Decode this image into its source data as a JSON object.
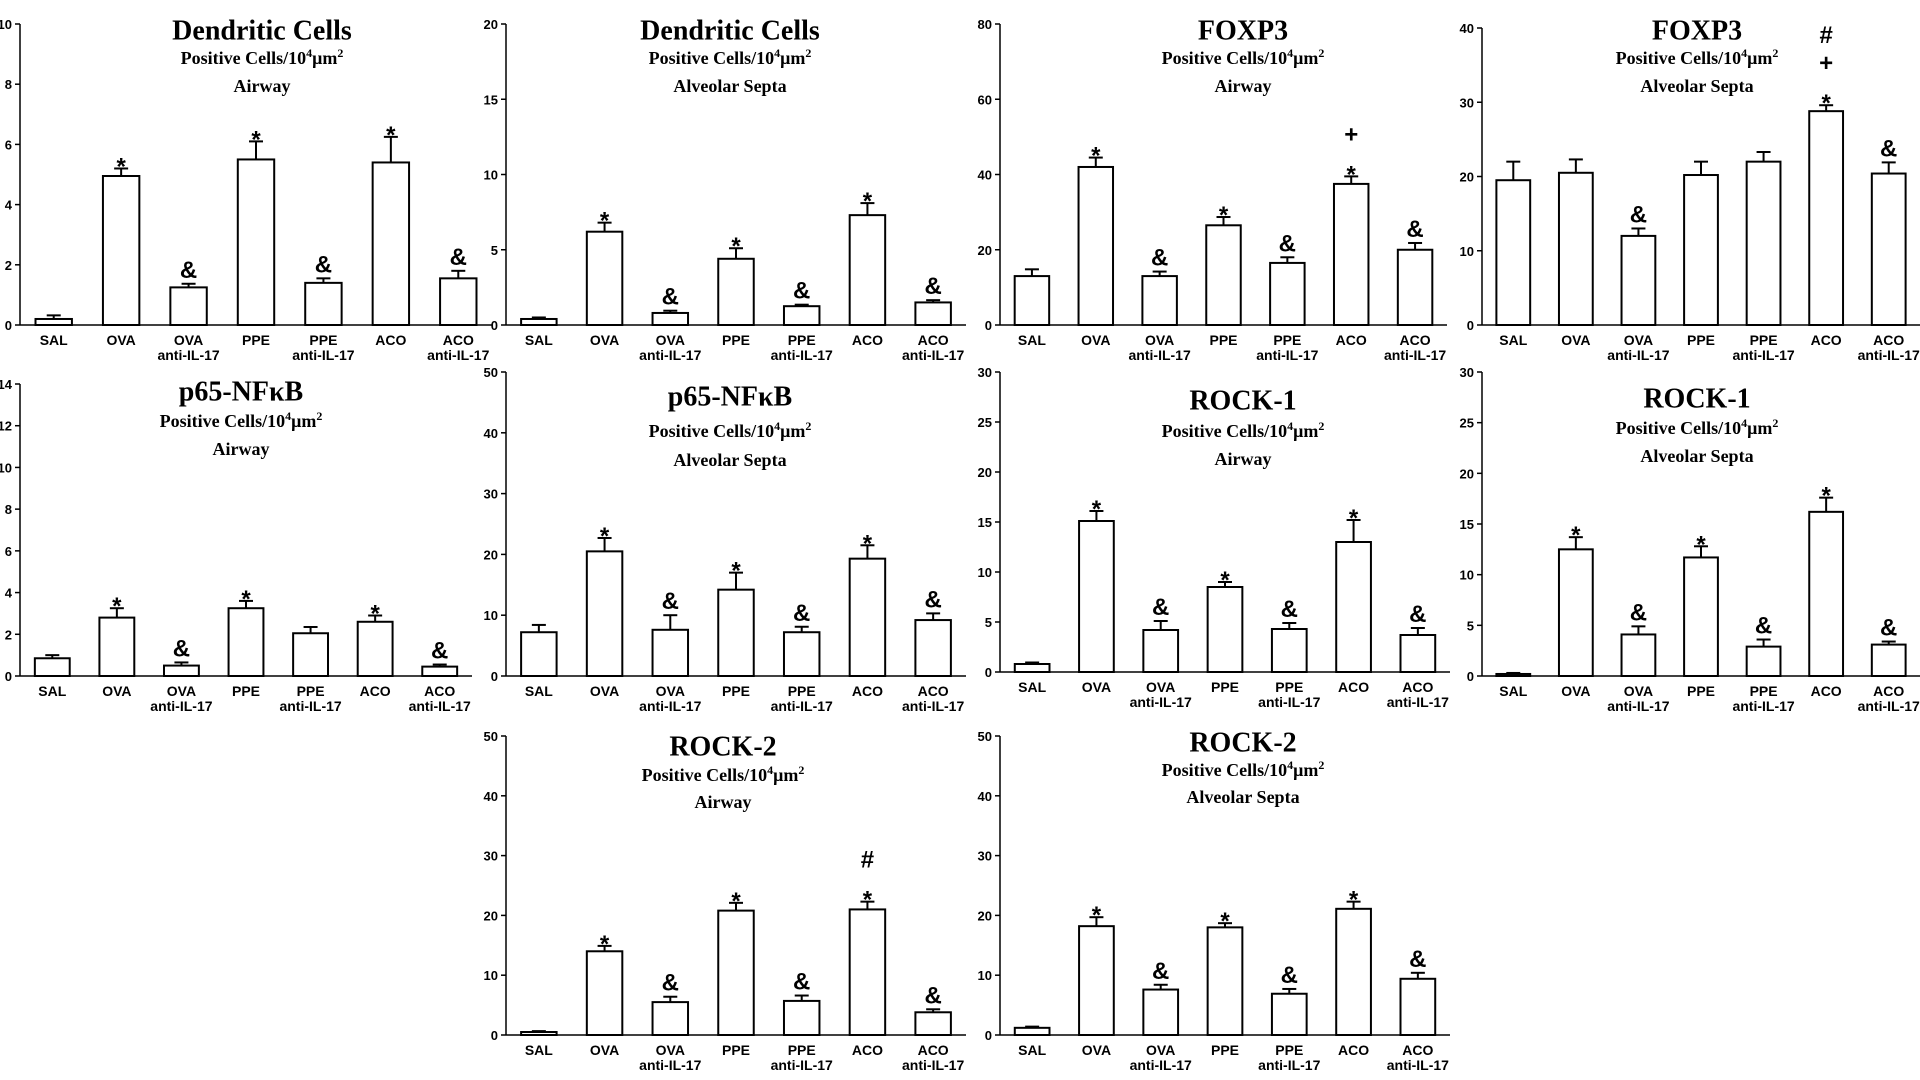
{
  "figure_unit_prefix": "Positive Cells/10",
  "figure_unit_exponent": "4",
  "figure_unit_suffix": "μm",
  "figure_unit_exponent2": "2",
  "chart_data": [
    {
      "type": "bar",
      "title": "Dendritic Cells",
      "location": "Airway",
      "categories": [
        [
          "SAL"
        ],
        [
          "OVA"
        ],
        [
          "OVA",
          "anti-IL-17"
        ],
        [
          "PPE"
        ],
        [
          "PPE",
          "anti-IL-17"
        ],
        [
          "ACO"
        ],
        [
          "ACO",
          "anti-IL-17"
        ]
      ],
      "values": [
        0.2,
        4.95,
        1.25,
        5.5,
        1.4,
        5.4,
        1.55
      ],
      "errors": [
        0.12,
        0.25,
        0.12,
        0.6,
        0.15,
        0.85,
        0.25
      ],
      "annotations": [
        [],
        [
          "*"
        ],
        [
          "&"
        ],
        [
          "*"
        ],
        [
          "&"
        ],
        [
          "*"
        ],
        [
          "&"
        ]
      ],
      "ylim": [
        0,
        10
      ],
      "yticks": [
        0,
        2,
        4,
        6,
        8,
        10
      ]
    },
    {
      "type": "bar",
      "title": "Dendritic Cells",
      "location": "Alveolar Septa",
      "categories": [
        [
          "SAL"
        ],
        [
          "OVA"
        ],
        [
          "OVA",
          "anti-IL-17"
        ],
        [
          "PPE"
        ],
        [
          "PPE",
          "anti-IL-17"
        ],
        [
          "ACO"
        ],
        [
          "ACO",
          "anti-IL-17"
        ]
      ],
      "values": [
        0.4,
        6.2,
        0.8,
        4.4,
        1.25,
        7.3,
        1.5
      ],
      "errors": [
        0.1,
        0.6,
        0.15,
        0.7,
        0.1,
        0.8,
        0.15
      ],
      "annotations": [
        [],
        [
          "*"
        ],
        [
          "&"
        ],
        [
          "*"
        ],
        [
          "&"
        ],
        [
          "*"
        ],
        [
          "&"
        ]
      ],
      "ylim": [
        0,
        20
      ],
      "yticks": [
        0,
        5,
        10,
        15,
        20
      ]
    },
    {
      "type": "bar",
      "title": "FOXP3",
      "location": "Airway",
      "categories": [
        [
          "SAL"
        ],
        [
          "OVA"
        ],
        [
          "OVA",
          "anti-IL-17"
        ],
        [
          "PPE"
        ],
        [
          "PPE",
          "anti-IL-17"
        ],
        [
          "ACO"
        ],
        [
          "ACO",
          "anti-IL-17"
        ]
      ],
      "values": [
        13,
        42,
        13,
        26.5,
        16.5,
        37.5,
        20
      ],
      "errors": [
        1.8,
        2.5,
        1.2,
        2.2,
        1.5,
        2,
        1.8
      ],
      "annotations": [
        [],
        [
          "*"
        ],
        [
          "&"
        ],
        [
          "*"
        ],
        [
          "&"
        ],
        [
          "*",
          "+"
        ],
        [
          "&"
        ]
      ],
      "ylim": [
        0,
        80
      ],
      "yticks": [
        0,
        20,
        40,
        60,
        80
      ]
    },
    {
      "type": "bar",
      "title": "FOXP3",
      "location": "Alveolar Septa",
      "categories": [
        [
          "SAL"
        ],
        [
          "OVA"
        ],
        [
          "OVA",
          "anti-IL-17"
        ],
        [
          "PPE"
        ],
        [
          "PPE",
          "anti-IL-17"
        ],
        [
          "ACO"
        ],
        [
          "ACO",
          "anti-IL-17"
        ]
      ],
      "values": [
        19.5,
        20.5,
        12,
        20.2,
        22,
        28.8,
        20.4
      ],
      "errors": [
        2.5,
        1.8,
        1,
        1.8,
        1.3,
        0.8,
        1.5
      ],
      "annotations": [
        [],
        [],
        [
          "&"
        ],
        [],
        [],
        [
          "*",
          "+",
          "#"
        ],
        [
          "&"
        ]
      ],
      "ylim": [
        0,
        40
      ],
      "yticks": [
        0,
        10,
        20,
        30,
        40
      ]
    },
    {
      "type": "bar",
      "title": "p65-NFκB",
      "location": "Airway",
      "categories": [
        [
          "SAL"
        ],
        [
          "OVA"
        ],
        [
          "OVA",
          "anti-IL-17"
        ],
        [
          "PPE"
        ],
        [
          "PPE",
          "anti-IL-17"
        ],
        [
          "ACO"
        ],
        [
          "ACO",
          "anti-IL-17"
        ]
      ],
      "values": [
        0.85,
        2.8,
        0.5,
        3.25,
        2.05,
        2.6,
        0.45
      ],
      "errors": [
        0.15,
        0.45,
        0.15,
        0.35,
        0.3,
        0.3,
        0.1
      ],
      "annotations": [
        [],
        [
          "*"
        ],
        [
          "&"
        ],
        [
          "*"
        ],
        [],
        [
          "*"
        ],
        [
          "&"
        ]
      ],
      "ylim": [
        0,
        14
      ],
      "yticks": [
        0,
        2,
        4,
        6,
        8,
        10,
        12,
        14
      ]
    },
    {
      "type": "bar",
      "title": "p65-NFκB",
      "location": "Alveolar Septa",
      "categories": [
        [
          "SAL"
        ],
        [
          "OVA"
        ],
        [
          "OVA",
          "anti-IL-17"
        ],
        [
          "PPE"
        ],
        [
          "PPE",
          "anti-IL-17"
        ],
        [
          "ACO"
        ],
        [
          "ACO",
          "anti-IL-17"
        ]
      ],
      "values": [
        7.2,
        20.5,
        7.6,
        14.2,
        7.2,
        19.3,
        9.2
      ],
      "errors": [
        1.2,
        2.2,
        2.4,
        2.8,
        0.9,
        2.2,
        1.1
      ],
      "annotations": [
        [],
        [
          "*"
        ],
        [
          "&"
        ],
        [
          "*"
        ],
        [
          "&"
        ],
        [
          "*"
        ],
        [
          "&"
        ]
      ],
      "ylim": [
        0,
        50
      ],
      "yticks": [
        0,
        10,
        20,
        30,
        40,
        50
      ]
    },
    {
      "type": "bar",
      "title": "ROCK-1",
      "location": "Airway",
      "categories": [
        [
          "SAL"
        ],
        [
          "OVA"
        ],
        [
          "OVA",
          "anti-IL-17"
        ],
        [
          "PPE"
        ],
        [
          "PPE",
          "anti-IL-17"
        ],
        [
          "ACO"
        ],
        [
          "ACO",
          "anti-IL-17"
        ]
      ],
      "values": [
        0.8,
        15.1,
        4.2,
        8.5,
        4.3,
        13.0,
        3.7
      ],
      "errors": [
        0.15,
        1,
        0.9,
        0.5,
        0.6,
        2.2,
        0.7
      ],
      "annotations": [
        [],
        [
          "*"
        ],
        [
          "&"
        ],
        [
          "*"
        ],
        [
          "&"
        ],
        [
          "*"
        ],
        [
          "&"
        ]
      ],
      "ylim": [
        0,
        30
      ],
      "yticks": [
        0,
        5,
        10,
        15,
        20,
        25,
        30
      ]
    },
    {
      "type": "bar",
      "title": "ROCK-1",
      "location": "Alveolar Septa",
      "categories": [
        [
          "SAL"
        ],
        [
          "OVA"
        ],
        [
          "OVA",
          "anti-IL-17"
        ],
        [
          "PPE"
        ],
        [
          "PPE",
          "anti-IL-17"
        ],
        [
          "ACO"
        ],
        [
          "ACO",
          "anti-IL-17"
        ]
      ],
      "values": [
        0.2,
        12.5,
        4.1,
        11.7,
        2.9,
        16.2,
        3.1
      ],
      "errors": [
        0.1,
        1.2,
        0.8,
        1.1,
        0.7,
        1.4,
        0.3
      ],
      "annotations": [
        [],
        [
          "*"
        ],
        [
          "&"
        ],
        [
          "*"
        ],
        [
          "&"
        ],
        [
          "*"
        ],
        [
          "&"
        ]
      ],
      "ylim": [
        0,
        30
      ],
      "yticks": [
        0,
        5,
        10,
        15,
        20,
        25,
        30
      ]
    },
    {
      "type": "bar",
      "title": "ROCK-2",
      "location": "Airway",
      "categories": [
        [
          "SAL"
        ],
        [
          "OVA"
        ],
        [
          "OVA",
          "anti-IL-17"
        ],
        [
          "PPE"
        ],
        [
          "PPE",
          "anti-IL-17"
        ],
        [
          "ACO"
        ],
        [
          "ACO",
          "anti-IL-17"
        ]
      ],
      "values": [
        0.5,
        14.0,
        5.5,
        20.8,
        5.7,
        21.0,
        3.8
      ],
      "errors": [
        0.15,
        0.9,
        0.9,
        1.3,
        0.9,
        1.3,
        0.5
      ],
      "annotations": [
        [],
        [
          "*"
        ],
        [
          "&"
        ],
        [
          "*"
        ],
        [
          "&"
        ],
        [
          "*",
          "#"
        ],
        [
          "&"
        ]
      ],
      "ylim": [
        0,
        50
      ],
      "yticks": [
        0,
        10,
        20,
        30,
        40,
        50
      ]
    },
    {
      "type": "bar",
      "title": "ROCK-2",
      "location": "Alveolar Septa",
      "categories": [
        [
          "SAL"
        ],
        [
          "OVA"
        ],
        [
          "OVA",
          "anti-IL-17"
        ],
        [
          "PPE"
        ],
        [
          "PPE",
          "anti-IL-17"
        ],
        [
          "ACO"
        ],
        [
          "ACO",
          "anti-IL-17"
        ]
      ],
      "values": [
        1.2,
        18.2,
        7.6,
        18.0,
        6.9,
        21.1,
        9.4
      ],
      "errors": [
        0.2,
        1.5,
        0.8,
        0.7,
        0.8,
        1.2,
        1.0
      ],
      "annotations": [
        [],
        [
          "*"
        ],
        [
          "&"
        ],
        [
          "*"
        ],
        [
          "&"
        ],
        [
          "*"
        ],
        [
          "&"
        ]
      ],
      "ylim": [
        0,
        50
      ],
      "yticks": [
        0,
        10,
        20,
        30,
        40,
        50
      ]
    }
  ]
}
